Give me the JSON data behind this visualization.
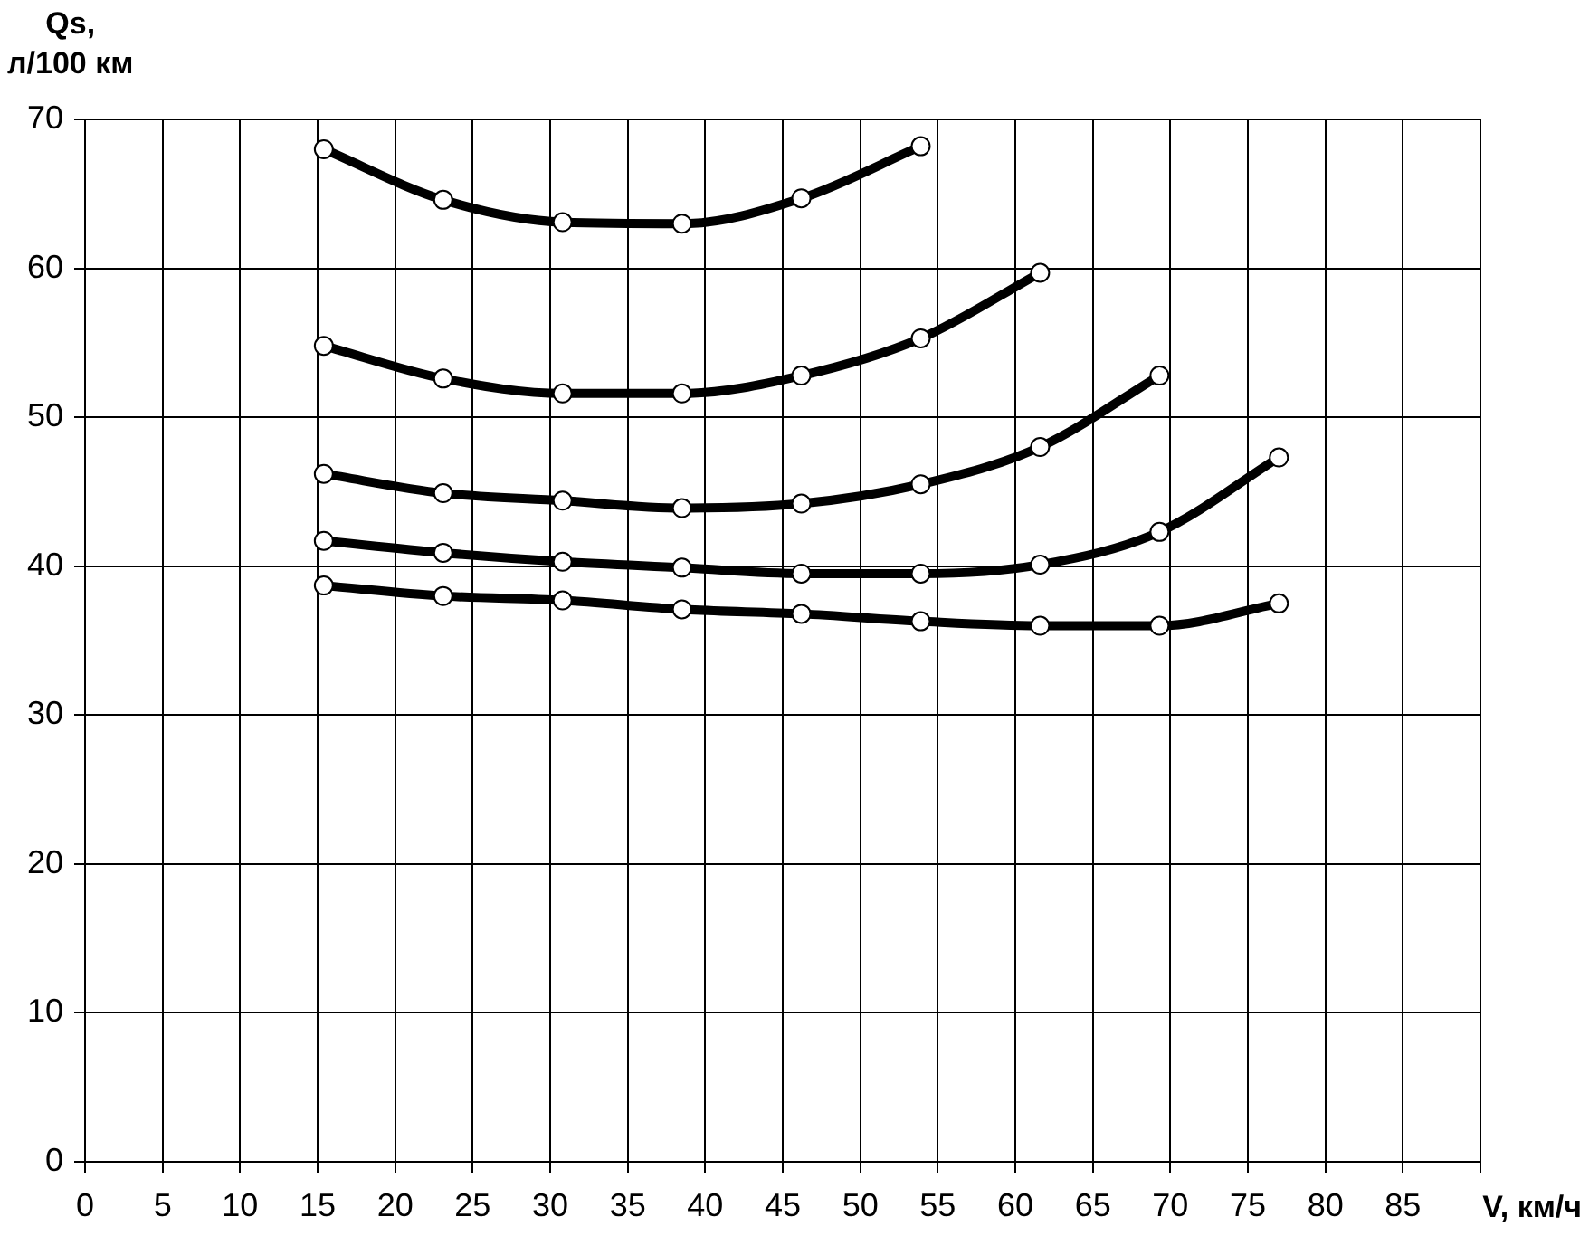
{
  "chart_data": {
    "type": "line",
    "xlabel": "V, км/ч",
    "ylabel": "Qs,\nл/100 км",
    "xlim": [
      0,
      90
    ],
    "xticks": [
      0,
      5,
      10,
      15,
      20,
      25,
      30,
      35,
      40,
      45,
      50,
      55,
      60,
      65,
      70,
      75,
      80,
      85,
      {
        "value": 90,
        "label": null
      }
    ],
    "ylim": [
      0,
      70
    ],
    "yticks": [
      0,
      10,
      20,
      30,
      40,
      50,
      60,
      70
    ],
    "grid": true,
    "marker": "circle",
    "line_style": "solid",
    "series": [
      {
        "color": "#000000",
        "x": [
          15.4,
          23.1,
          30.8,
          38.5,
          46.2,
          53.9
        ],
        "values": [
          68.0,
          64.6,
          63.1,
          63.0,
          64.7,
          68.2
        ]
      },
      {
        "color": "#000000",
        "x": [
          15.4,
          23.1,
          30.8,
          38.5,
          46.2,
          53.9,
          61.6
        ],
        "values": [
          54.8,
          52.6,
          51.6,
          51.6,
          52.8,
          55.3,
          59.7
        ]
      },
      {
        "color": "#000000",
        "x": [
          15.4,
          23.1,
          30.8,
          38.5,
          46.2,
          53.9,
          61.6,
          69.3
        ],
        "values": [
          46.2,
          44.9,
          44.4,
          43.9,
          44.2,
          45.5,
          48.0,
          52.8
        ]
      },
      {
        "color": "#000000",
        "x": [
          15.4,
          23.1,
          30.8,
          38.5,
          46.2,
          53.9,
          61.6,
          69.3,
          77.0
        ],
        "values": [
          41.7,
          40.9,
          40.3,
          39.9,
          39.5,
          39.5,
          40.1,
          42.3,
          47.3
        ]
      },
      {
        "color": "#000000",
        "x": [
          15.4,
          23.1,
          30.8,
          38.5,
          46.2,
          53.9,
          61.6,
          69.3,
          77.0
        ],
        "values": [
          38.7,
          38.0,
          37.7,
          37.1,
          36.8,
          36.3,
          36.0,
          36.0,
          37.5
        ]
      }
    ]
  }
}
